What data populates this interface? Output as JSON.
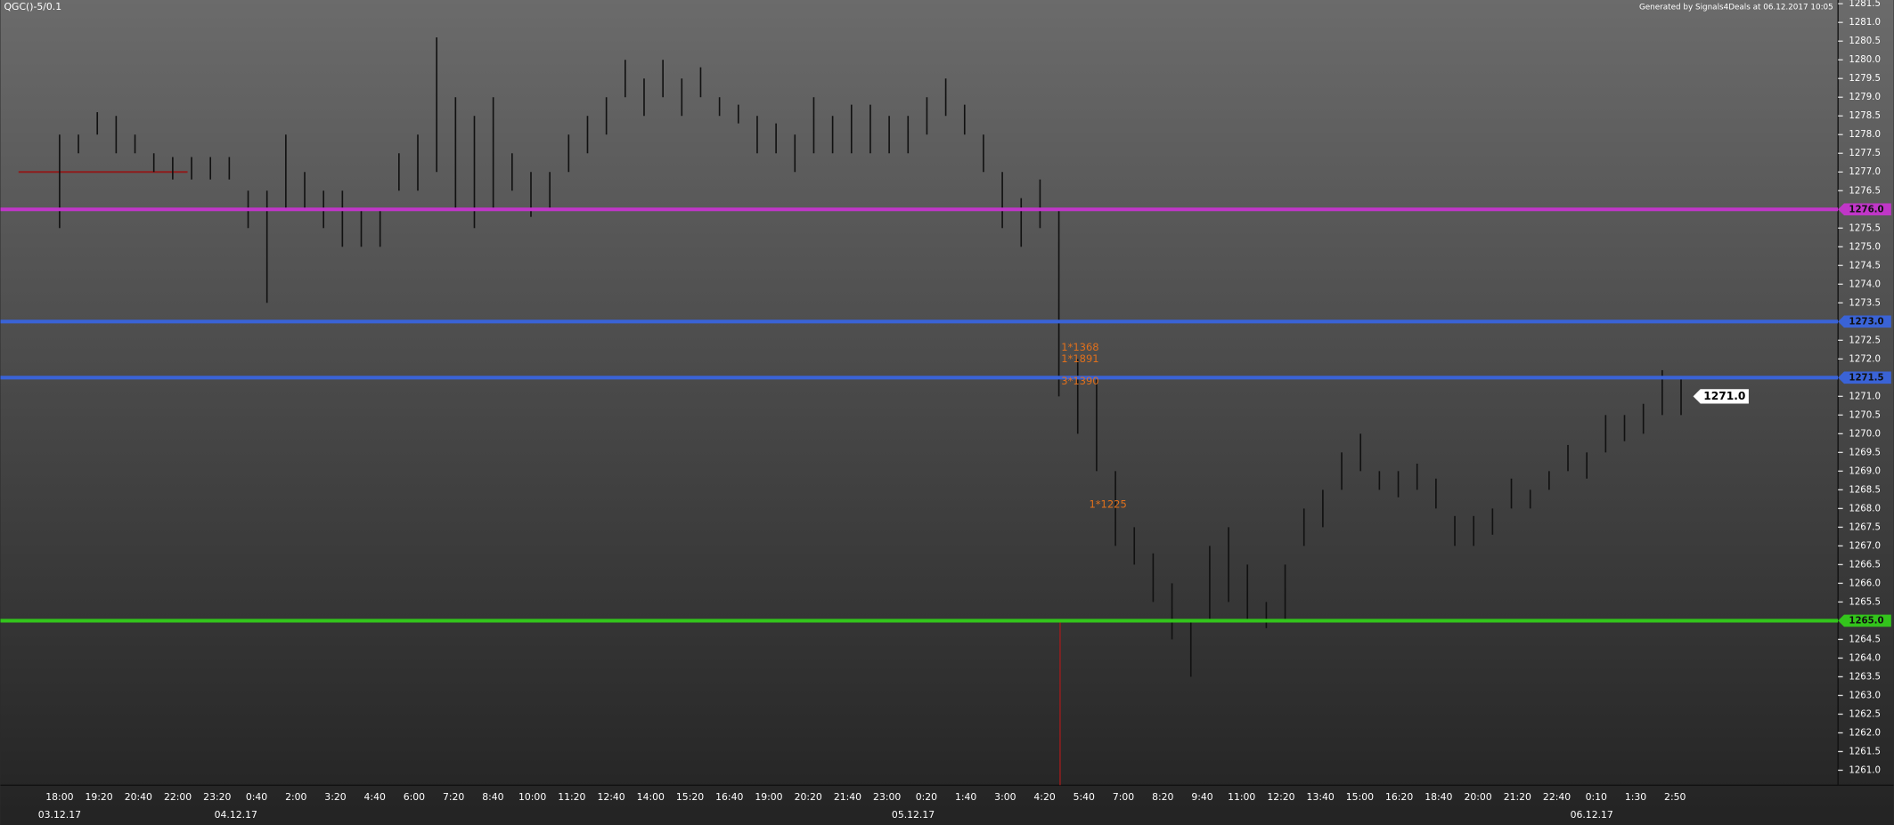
{
  "chart_data": {
    "type": "ohlc",
    "title": "QGC()-5/0.1",
    "subtitle": "Generated by Signals4Deals at 06.12.2017 10:05",
    "color": "#111111",
    "ylim": [
      1260.6,
      1281.6
    ],
    "yticks": [
      {
        "value": 1261.0,
        "label": "1261.0"
      },
      {
        "value": 1261.5,
        "label": "1261.5"
      },
      {
        "value": 1262.0,
        "label": "1262.0"
      },
      {
        "value": 1262.5,
        "label": "1262.5"
      },
      {
        "value": 1263.0,
        "label": "1263.0"
      },
      {
        "value": 1263.5,
        "label": "1263.5"
      },
      {
        "value": 1264.0,
        "label": "1264.0"
      },
      {
        "value": 1264.5,
        "label": "1264.5"
      },
      {
        "value": 1265.5,
        "label": "1265.5"
      },
      {
        "value": 1266.0,
        "label": "1266.0"
      },
      {
        "value": 1266.5,
        "label": "1266.5"
      },
      {
        "value": 1267.0,
        "label": "1267.0"
      },
      {
        "value": 1267.5,
        "label": "1267.5"
      },
      {
        "value": 1268.0,
        "label": "1268.0"
      },
      {
        "value": 1268.5,
        "label": "1268.5"
      },
      {
        "value": 1269.0,
        "label": "1269.0"
      },
      {
        "value": 1269.5,
        "label": "1269.5"
      },
      {
        "value": 1270.0,
        "label": "1270.0"
      },
      {
        "value": 1270.5,
        "label": "1270.5"
      },
      {
        "value": 1271.0,
        "label": "1271.0"
      },
      {
        "value": 1272.0,
        "label": "1272.0"
      },
      {
        "value": 1272.5,
        "label": "1272.5"
      },
      {
        "value": 1273.5,
        "label": "1273.5"
      },
      {
        "value": 1274.0,
        "label": "1274.0"
      },
      {
        "value": 1274.5,
        "label": "1274.5"
      },
      {
        "value": 1275.0,
        "label": "1275.0"
      },
      {
        "value": 1275.5,
        "label": "1275.5"
      },
      {
        "value": 1276.5,
        "label": "1276.5"
      },
      {
        "value": 1277.0,
        "label": "1277.0"
      },
      {
        "value": 1277.5,
        "label": "1277.5"
      },
      {
        "value": 1278.0,
        "label": "1278.0"
      },
      {
        "value": 1278.5,
        "label": "1278.5"
      },
      {
        "value": 1279.0,
        "label": "1279.0"
      },
      {
        "value": 1279.5,
        "label": "1279.5"
      },
      {
        "value": 1280.0,
        "label": "1280.0"
      },
      {
        "value": 1280.5,
        "label": "1280.5"
      },
      {
        "value": 1281.0,
        "label": "1281.0"
      },
      {
        "value": 1281.5,
        "label": "1281.5"
      }
    ],
    "categories": [
      "18:00",
      "19:20",
      "20:40",
      "22:00",
      "23:20",
      "0:40",
      "2:00",
      "3:20",
      "4:40",
      "6:00",
      "7:20",
      "8:40",
      "10:00",
      "11:20",
      "12:40",
      "14:00",
      "15:20",
      "16:40",
      "19:00",
      "20:20",
      "21:40",
      "23:00",
      "0:20",
      "1:40",
      "3:00",
      "4:20",
      "5:40",
      "7:00",
      "8:20",
      "9:40",
      "11:00",
      "12:20",
      "13:40",
      "15:00",
      "16:20",
      "18:40",
      "20:00",
      "21:20",
      "22:40",
      "0:10",
      "1:30",
      "2:50"
    ],
    "dates": [
      "03.12.17",
      "04.12.17",
      "05.12.17",
      "06.12.17"
    ],
    "low": [
      1275.5,
      1277.5,
      1278.0,
      1277.5,
      1277.5,
      1277.0,
      1276.8,
      1276.8,
      1276.8,
      1276.8,
      1275.5,
      1273.5,
      1276.0,
      1276.0,
      1275.5,
      1275.0,
      1275.0,
      1275.0,
      1276.5,
      1276.5,
      1277.0,
      1276.0,
      1275.5,
      1276.0,
      1276.5,
      1275.8,
      1276.0,
      1277.0,
      1277.5,
      1278.0,
      1279.0,
      1278.5,
      1279.0,
      1278.5,
      1279.0,
      1278.5,
      1278.3,
      1277.5,
      1277.5,
      1277.0,
      1277.5,
      1277.5,
      1277.5,
      1277.5,
      1277.5,
      1277.5,
      1278.0,
      1278.5,
      1278.0,
      1277.0,
      1275.5,
      1275.0,
      1275.5,
      1271.0,
      1270.0,
      1269.0,
      1267.0,
      1266.5,
      1265.5,
      1264.5,
      1263.5,
      1265.0,
      1265.5,
      1265.0,
      1264.8,
      1265.0,
      1267.0,
      1267.5,
      1268.5,
      1269.0,
      1268.5,
      1268.3,
      1268.5,
      1268.0,
      1267.0,
      1267.0,
      1267.3,
      1268.0,
      1268.0,
      1268.5,
      1269.0,
      1268.8,
      1269.5,
      1269.8,
      1270.0,
      1270.5,
      1270.5
    ],
    "high": [
      1278.0,
      1278.0,
      1278.6,
      1278.5,
      1278.0,
      1277.5,
      1277.4,
      1277.4,
      1277.4,
      1277.4,
      1276.5,
      1276.5,
      1278.0,
      1277.0,
      1276.5,
      1276.5,
      1276.0,
      1276.0,
      1277.5,
      1278.0,
      1280.6,
      1279.0,
      1278.5,
      1279.0,
      1277.5,
      1277.0,
      1277.0,
      1278.0,
      1278.5,
      1279.0,
      1280.0,
      1279.5,
      1280.0,
      1279.5,
      1279.8,
      1279.0,
      1278.8,
      1278.5,
      1278.3,
      1278.0,
      1279.0,
      1278.5,
      1278.8,
      1278.8,
      1278.5,
      1278.5,
      1279.0,
      1279.5,
      1278.8,
      1278.0,
      1277.0,
      1276.3,
      1276.8,
      1276.0,
      1272.0,
      1271.5,
      1269.0,
      1267.5,
      1266.8,
      1266.0,
      1265.0,
      1267.0,
      1267.5,
      1266.5,
      1265.5,
      1266.5,
      1268.0,
      1268.5,
      1269.5,
      1270.0,
      1269.0,
      1269.0,
      1269.2,
      1268.8,
      1267.8,
      1267.8,
      1268.0,
      1268.8,
      1268.5,
      1269.0,
      1269.7,
      1269.5,
      1270.5,
      1270.5,
      1270.8,
      1271.7,
      1271.5
    ],
    "levels": [
      {
        "value": 1276.0,
        "label": "1276.0",
        "color": "#c036c8"
      },
      {
        "value": 1273.0,
        "label": "1273.0",
        "color": "#3a63d6"
      },
      {
        "value": 1271.5,
        "label": "1271.5",
        "color": "#3a63d6"
      },
      {
        "value": 1265.0,
        "label": "1265.0",
        "color": "#33c41c"
      }
    ],
    "reference_line": {
      "value": 1277.0,
      "color": "#8e1c1c"
    },
    "last_price": {
      "value": 1271.0,
      "label": "1271.0"
    },
    "annotations": [
      {
        "text": "1*1368",
        "value": 1272.3
      },
      {
        "text": "1*1891",
        "value": 1272.0
      },
      {
        "text": "3*1390",
        "value": 1271.4
      },
      {
        "text": "1*1225",
        "value": 1268.1
      }
    ],
    "annotation_color": "#e0701c"
  }
}
